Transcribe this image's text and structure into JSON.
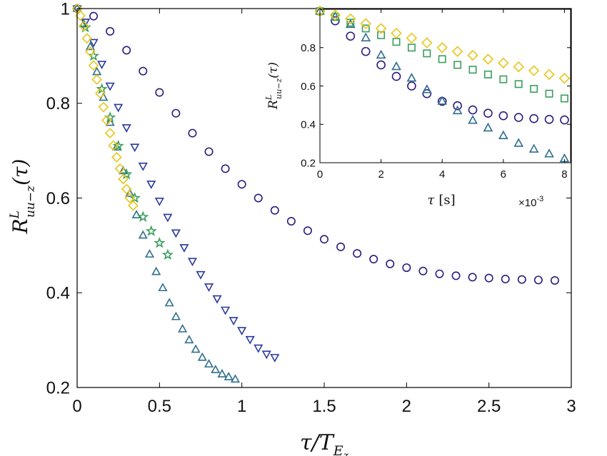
{
  "chart_data": [
    {
      "type": "scatter",
      "role": "main",
      "xlabel": "τ/T_{E_z}",
      "ylabel": "R^L_{uu−z}(τ)",
      "xlim": [
        0,
        3
      ],
      "ylim": [
        0.2,
        1.0
      ],
      "xticks": [
        "0",
        "0.5",
        "1",
        "1.5",
        "2",
        "2.5",
        "3"
      ],
      "yticks": [
        "0.2",
        "0.4",
        "0.6",
        "0.8",
        "1"
      ],
      "grid": false,
      "series": [
        {
          "marker": "circle",
          "color": "#2d1b7e",
          "x": [
            0,
            0.1,
            0.2,
            0.3,
            0.4,
            0.5,
            0.6,
            0.7,
            0.8,
            0.9,
            1.0,
            1.1,
            1.2,
            1.3,
            1.4,
            1.5,
            1.6,
            1.7,
            1.8,
            1.9,
            2.0,
            2.1,
            2.2,
            2.3,
            2.4,
            2.5,
            2.6,
            2.7,
            2.8,
            2.9
          ],
          "y": [
            1.0,
            0.984,
            0.952,
            0.912,
            0.868,
            0.823,
            0.779,
            0.737,
            0.698,
            0.662,
            0.629,
            0.6,
            0.574,
            0.551,
            0.531,
            0.513,
            0.497,
            0.483,
            0.471,
            0.461,
            0.453,
            0.446,
            0.44,
            0.436,
            0.433,
            0.431,
            0.429,
            0.428,
            0.427,
            0.426
          ]
        },
        {
          "marker": "triangle-down",
          "color": "#2a3a9c",
          "x": [
            0,
            0.05,
            0.1,
            0.15,
            0.2,
            0.25,
            0.3,
            0.35,
            0.4,
            0.45,
            0.5,
            0.55,
            0.6,
            0.65,
            0.7,
            0.75,
            0.8,
            0.85,
            0.9,
            0.95,
            1.0,
            1.05,
            1.1,
            1.15,
            1.2
          ],
          "y": [
            1.0,
            0.972,
            0.929,
            0.883,
            0.837,
            0.792,
            0.749,
            0.708,
            0.668,
            0.63,
            0.594,
            0.56,
            0.527,
            0.496,
            0.467,
            0.439,
            0.413,
            0.388,
            0.364,
            0.342,
            0.321,
            0.302,
            0.284,
            0.271,
            0.264
          ]
        },
        {
          "marker": "triangle-up",
          "color": "#2e6e8e",
          "x": [
            0,
            0.04,
            0.08,
            0.12,
            0.16,
            0.2,
            0.24,
            0.28,
            0.32,
            0.36,
            0.4,
            0.44,
            0.48,
            0.52,
            0.56,
            0.6,
            0.64,
            0.68,
            0.72,
            0.76,
            0.8,
            0.84,
            0.88,
            0.92,
            0.96
          ],
          "y": [
            1.0,
            0.967,
            0.919,
            0.866,
            0.812,
            0.759,
            0.707,
            0.657,
            0.609,
            0.564,
            0.521,
            0.481,
            0.444,
            0.41,
            0.378,
            0.349,
            0.323,
            0.3,
            0.28,
            0.263,
            0.249,
            0.237,
            0.228,
            0.222,
            0.217
          ]
        },
        {
          "marker": "star",
          "color": "#3a9e5c",
          "x": [
            0.05,
            0.1,
            0.15,
            0.2,
            0.25,
            0.3,
            0.35,
            0.4,
            0.45,
            0.5,
            0.55
          ],
          "y": [
            0.96,
            0.9,
            0.83,
            0.77,
            0.71,
            0.65,
            0.6,
            0.56,
            0.53,
            0.505,
            0.48
          ]
        },
        {
          "marker": "diamond",
          "color": "#e8c619",
          "x": [
            0,
            0.02,
            0.04,
            0.06,
            0.08,
            0.1,
            0.12,
            0.14,
            0.16,
            0.18,
            0.2,
            0.22,
            0.24,
            0.26,
            0.28,
            0.3,
            0.32,
            0.34
          ],
          "y": [
            1.0,
            0.985,
            0.963,
            0.937,
            0.909,
            0.88,
            0.85,
            0.821,
            0.792,
            0.764,
            0.737,
            0.711,
            0.686,
            0.662,
            0.64,
            0.619,
            0.6,
            0.584
          ]
        }
      ]
    },
    {
      "type": "scatter",
      "role": "inset",
      "xlabel": "τ [s]",
      "ylabel": "R^L_{uu−z}(τ)",
      "xlim": [
        0,
        0.0082
      ],
      "ylim": [
        0.2,
        1.0
      ],
      "xticks": [
        "0",
        "2",
        "4",
        "6",
        "8"
      ],
      "yticks": [
        "0.2",
        "0.4",
        "0.6",
        "0.8"
      ],
      "x_exponent": "×10^-3",
      "grid": false,
      "series": [
        {
          "marker": "circle",
          "color": "#2d1b7e",
          "x": [
            0.0,
            0.0005,
            0.001,
            0.0015,
            0.002,
            0.0025,
            0.003,
            0.0035,
            0.004,
            0.0045,
            0.005,
            0.0055,
            0.006,
            0.0065,
            0.007,
            0.0075,
            0.008
          ],
          "y": [
            0.99,
            0.94,
            0.86,
            0.78,
            0.71,
            0.65,
            0.6,
            0.56,
            0.52,
            0.497,
            0.475,
            0.458,
            0.445,
            0.436,
            0.43,
            0.426,
            0.423
          ]
        },
        {
          "marker": "triangle-up",
          "color": "#2e6e8e",
          "x": [
            0.0,
            0.0005,
            0.001,
            0.0015,
            0.002,
            0.0025,
            0.003,
            0.0035,
            0.004,
            0.0045,
            0.005,
            0.0055,
            0.006,
            0.0065,
            0.007,
            0.0075,
            0.008
          ],
          "y": [
            0.99,
            0.96,
            0.92,
            0.85,
            0.76,
            0.7,
            0.64,
            0.58,
            0.52,
            0.47,
            0.42,
            0.38,
            0.34,
            0.3,
            0.27,
            0.245,
            0.22
          ]
        },
        {
          "marker": "square",
          "color": "#3a9e5c",
          "x": [
            0.0,
            0.0005,
            0.001,
            0.0015,
            0.002,
            0.0025,
            0.003,
            0.0035,
            0.004,
            0.0045,
            0.005,
            0.0055,
            0.006,
            0.0065,
            0.007,
            0.0075,
            0.008
          ],
          "y": [
            0.99,
            0.96,
            0.93,
            0.9,
            0.865,
            0.83,
            0.8,
            0.77,
            0.74,
            0.71,
            0.685,
            0.66,
            0.635,
            0.61,
            0.585,
            0.56,
            0.535
          ]
        },
        {
          "marker": "diamond",
          "color": "#e8c619",
          "x": [
            0.0,
            0.0005,
            0.001,
            0.0015,
            0.002,
            0.0025,
            0.003,
            0.0035,
            0.004,
            0.0045,
            0.005,
            0.0055,
            0.006,
            0.0065,
            0.007,
            0.0075,
            0.008
          ],
          "y": [
            0.99,
            0.97,
            0.95,
            0.925,
            0.9,
            0.875,
            0.85,
            0.825,
            0.8,
            0.78,
            0.76,
            0.74,
            0.72,
            0.7,
            0.68,
            0.66,
            0.64
          ]
        }
      ]
    }
  ]
}
